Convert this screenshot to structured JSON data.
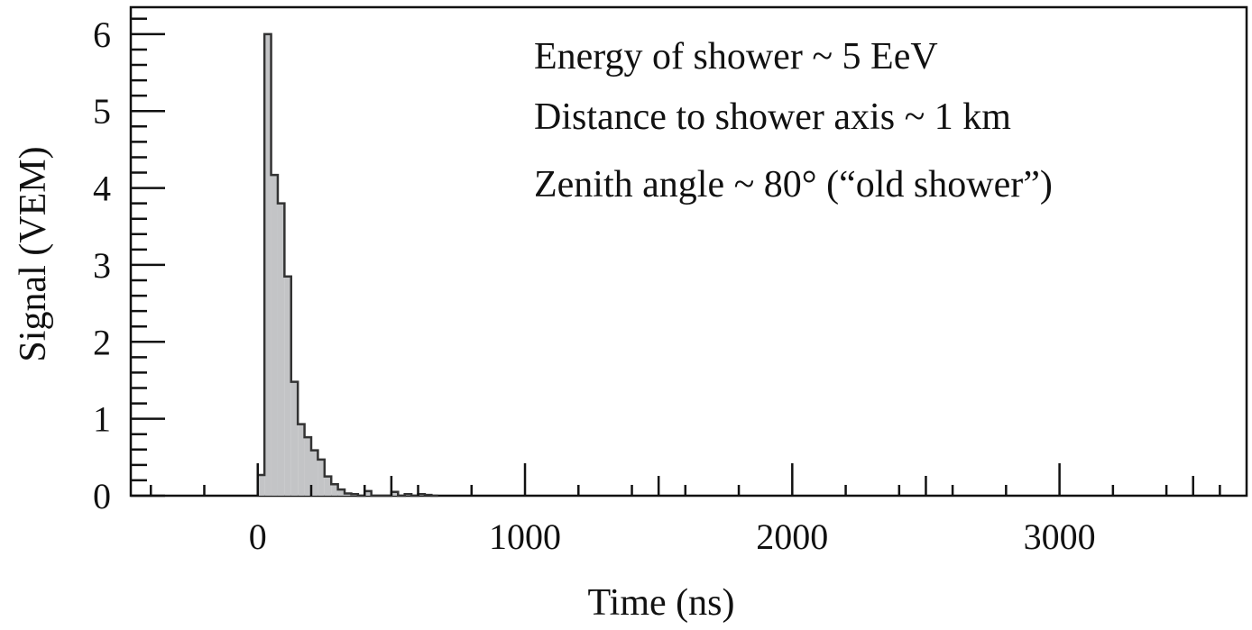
{
  "chart_data": {
    "type": "bar",
    "histogram": true,
    "title": "",
    "xlabel": "Time (ns)",
    "ylabel": "Signal (VEM)",
    "xlim": [
      -475,
      3700
    ],
    "ylim": [
      0,
      6.35
    ],
    "xticks": [
      0,
      1000,
      2000,
      3000
    ],
    "xtick_labels": [
      "0",
      "1000",
      "2000",
      "3000"
    ],
    "yticks": [
      0,
      1,
      2,
      3,
      4,
      5,
      6
    ],
    "ytick_labels": [
      "0",
      "1",
      "2",
      "3",
      "4",
      "5",
      "6"
    ],
    "grid": false,
    "legend": "none",
    "fill_color": "#c3c4c6",
    "line_color": "#333333",
    "bin_edges": [
      0,
      25,
      50,
      75,
      100,
      125,
      150,
      175,
      200,
      225,
      250,
      275,
      300,
      325,
      350,
      375,
      400,
      425,
      450,
      475,
      500,
      525,
      550,
      575,
      600,
      625,
      650,
      675
    ],
    "values": [
      0.27,
      6.0,
      4.17,
      3.8,
      2.85,
      1.48,
      0.93,
      0.76,
      0.59,
      0.47,
      0.25,
      0.15,
      0.08,
      0.03,
      0.02,
      0.0,
      0.06,
      0.0,
      0.0,
      0.0,
      0.05,
      0.0,
      0.02,
      0.0,
      0.02,
      0.01,
      0.0
    ],
    "annotations": [
      "Energy of shower ~ 5 EeV",
      "Distance to shower axis ~ 1 km",
      "Zenith angle ~ 80° (“old shower”)"
    ]
  }
}
